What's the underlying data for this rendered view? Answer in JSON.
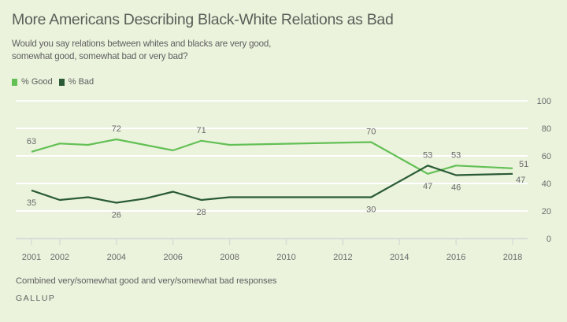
{
  "header": {
    "title": "More Americans Describing Black-White Relations as Bad",
    "subtitle": "Would you say relations between whites and blacks are very good, somewhat good, somewhat bad or very bad?"
  },
  "footer": {
    "note": "Combined very/somewhat good and very/somewhat bad responses",
    "brand": "GALLUP"
  },
  "colors": {
    "background": "#ebf3dd",
    "good": "#63c055",
    "bad": "#2a5a36",
    "grid": "#ffffff",
    "axis": "#d9dcd6"
  },
  "chart_data": {
    "type": "line",
    "title": "More Americans Describing Black-White Relations as Bad",
    "xlabel": "",
    "ylabel": "",
    "ylim": [
      0,
      100
    ],
    "xlim": [
      2001,
      2018
    ],
    "y_ticks": [
      0,
      20,
      40,
      60,
      80,
      100
    ],
    "x_ticks": [
      2001,
      2002,
      2004,
      2006,
      2008,
      2010,
      2012,
      2014,
      2016,
      2018
    ],
    "grid": true,
    "legend_position": "top-left",
    "x": [
      2001,
      2002,
      2003,
      2004,
      2005,
      2006,
      2007,
      2008,
      2013,
      2015,
      2016,
      2018
    ],
    "series": [
      {
        "name": "% Good",
        "color": "#63c055",
        "values": [
          63,
          69,
          68,
          72,
          68,
          64,
          71,
          68,
          70,
          47,
          53,
          51
        ],
        "labels": [
          {
            "year": 2001,
            "value": 63,
            "pos": "above"
          },
          {
            "year": 2004,
            "value": 72,
            "pos": "above"
          },
          {
            "year": 2007,
            "value": 71,
            "pos": "above"
          },
          {
            "year": 2013,
            "value": 70,
            "pos": "above"
          },
          {
            "year": 2015,
            "value": 47,
            "pos": "below"
          },
          {
            "year": 2016,
            "value": 53,
            "pos": "above"
          },
          {
            "year": 2018,
            "value": 51,
            "pos": "right-above"
          }
        ]
      },
      {
        "name": "% Bad",
        "color": "#2a5a36",
        "values": [
          35,
          28,
          30,
          26,
          29,
          34,
          28,
          30,
          30,
          53,
          46,
          47
        ],
        "labels": [
          {
            "year": 2001,
            "value": 35,
            "pos": "below"
          },
          {
            "year": 2004,
            "value": 26,
            "pos": "below"
          },
          {
            "year": 2007,
            "value": 28,
            "pos": "below"
          },
          {
            "year": 2013,
            "value": 30,
            "pos": "below"
          },
          {
            "year": 2015,
            "value": 53,
            "pos": "above"
          },
          {
            "year": 2016,
            "value": 46,
            "pos": "below"
          },
          {
            "year": 2018,
            "value": 47,
            "pos": "right-below"
          }
        ]
      }
    ]
  }
}
